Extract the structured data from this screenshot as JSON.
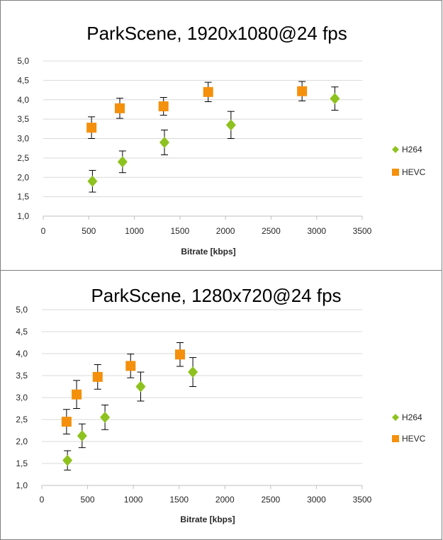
{
  "chart_data": [
    {
      "type": "scatter",
      "title": "ParkScene, 1920x1080@24 fps",
      "xlabel": "Bitrate [kbps]",
      "ylabel": "",
      "xlim": [
        0,
        3500
      ],
      "ylim": [
        1.0,
        5.0
      ],
      "x_ticks": [
        0,
        500,
        1000,
        1500,
        2000,
        2500,
        3000,
        3500
      ],
      "x_tick_labels": [
        "0",
        "500",
        "1000",
        "1500",
        "2000",
        "2500",
        "3000",
        "3500"
      ],
      "y_ticks": [
        1.0,
        1.5,
        2.0,
        2.5,
        3.0,
        3.5,
        4.0,
        4.5,
        5.0
      ],
      "y_tick_labels": [
        "1,0",
        "1,5",
        "2,0",
        "2,5",
        "3,0",
        "3,5",
        "4,0",
        "4,5",
        "5,0"
      ],
      "grid": "horizontal",
      "legend_position": "right",
      "series": [
        {
          "name": "H264",
          "marker": "diamond",
          "color": "#8dc21f",
          "x": [
            540,
            870,
            1330,
            2060,
            3200
          ],
          "y": [
            1.9,
            2.4,
            2.9,
            3.35,
            4.03
          ],
          "error": [
            0.28,
            0.28,
            0.32,
            0.35,
            0.3
          ]
        },
        {
          "name": "HEVC",
          "marker": "square",
          "color": "#f4900c",
          "x": [
            530,
            840,
            1320,
            1810,
            2840
          ],
          "y": [
            3.28,
            3.78,
            3.83,
            4.2,
            4.22
          ],
          "error": [
            0.28,
            0.26,
            0.23,
            0.25,
            0.25
          ]
        }
      ]
    },
    {
      "type": "scatter",
      "title": "ParkScene, 1280x720@24 fps",
      "xlabel": "Bitrate [kbps]",
      "ylabel": "",
      "xlim": [
        0,
        3500
      ],
      "ylim": [
        1.0,
        5.0
      ],
      "x_ticks": [
        0,
        500,
        1000,
        1500,
        2000,
        2500,
        3000,
        3500
      ],
      "x_tick_labels": [
        "0",
        "500",
        "1000",
        "1500",
        "2000",
        "2500",
        "3000",
        "3500"
      ],
      "y_ticks": [
        1.0,
        1.5,
        2.0,
        2.5,
        3.0,
        3.5,
        4.0,
        4.5,
        5.0
      ],
      "y_tick_labels": [
        "1,0",
        "1,5",
        "2,0",
        "2,5",
        "3,0",
        "3,5",
        "4,0",
        "4,5",
        "5,0"
      ],
      "grid": "horizontal",
      "legend_position": "right",
      "series": [
        {
          "name": "H264",
          "marker": "diamond",
          "color": "#8dc21f",
          "x": [
            280,
            440,
            690,
            1080,
            1650
          ],
          "y": [
            1.57,
            2.13,
            2.55,
            3.25,
            3.58
          ],
          "error": [
            0.22,
            0.27,
            0.28,
            0.33,
            0.33
          ]
        },
        {
          "name": "HEVC",
          "marker": "square",
          "color": "#f4900c",
          "x": [
            270,
            380,
            610,
            970,
            1510
          ],
          "y": [
            2.45,
            3.07,
            3.47,
            3.72,
            3.98
          ],
          "error": [
            0.28,
            0.32,
            0.28,
            0.27,
            0.27
          ]
        }
      ]
    }
  ]
}
